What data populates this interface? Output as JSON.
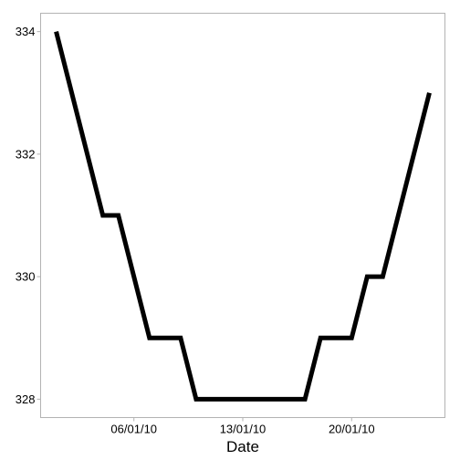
{
  "chart_data": {
    "type": "line",
    "title": "",
    "xlabel": "Date",
    "ylabel": "",
    "x": [
      "2010-01-01",
      "2010-01-02",
      "2010-01-03",
      "2010-01-04",
      "2010-01-05",
      "2010-01-06",
      "2010-01-07",
      "2010-01-08",
      "2010-01-09",
      "2010-01-10",
      "2010-01-11",
      "2010-01-12",
      "2010-01-13",
      "2010-01-14",
      "2010-01-15",
      "2010-01-16",
      "2010-01-17",
      "2010-01-18",
      "2010-01-19",
      "2010-01-20",
      "2010-01-21",
      "2010-01-22",
      "2010-01-23",
      "2010-01-24",
      "2010-01-25"
    ],
    "series": [
      {
        "values": [
          334,
          333,
          332,
          331,
          331,
          330,
          329,
          329,
          329,
          328,
          328,
          328,
          328,
          328,
          328,
          328,
          328,
          329,
          329,
          329,
          330,
          330,
          331,
          332,
          333
        ]
      }
    ],
    "xticks": [
      "2010-01-06",
      "2010-01-13",
      "2010-01-20"
    ],
    "xtick_labels": [
      "06/01/10",
      "13/01/10",
      "20/01/10"
    ],
    "yticks": [
      328,
      330,
      332,
      334
    ],
    "ytick_labels": [
      "328",
      "330",
      "332",
      "334"
    ],
    "xlim": [
      "2009-12-31",
      "2010-01-26"
    ],
    "ylim": [
      327.7,
      334.3
    ],
    "grid": false,
    "line_color": "#000000",
    "axis_color": "#b3b3b3"
  }
}
